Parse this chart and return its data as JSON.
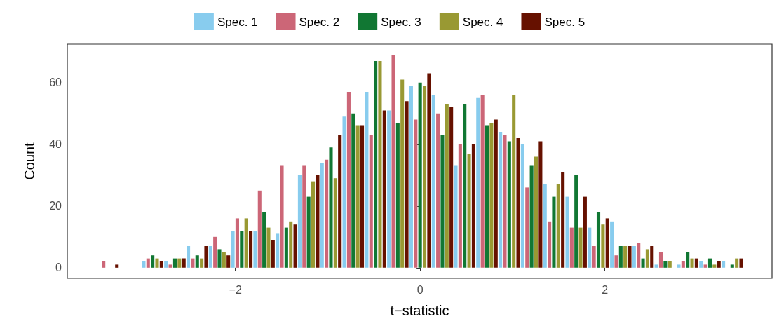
{
  "chart_data": {
    "type": "histogram",
    "xlabel": "t−statistic",
    "ylabel": "Count",
    "bins": [
      -3.5,
      -3.259,
      -3.017,
      -2.776,
      -2.534,
      -2.293,
      -2.052,
      -1.81,
      -1.569,
      -1.328,
      -1.086,
      -0.845,
      -0.603,
      -0.362,
      -0.121,
      0.121,
      0.362,
      0.603,
      0.845,
      1.086,
      1.328,
      1.569,
      1.81,
      2.052,
      2.293,
      2.534,
      2.776,
      3.017,
      3.259,
      3.5
    ],
    "series": [
      {
        "name": "Spec. 1",
        "color": "#88ccee",
        "values": [
          0,
          0,
          2,
          2,
          7,
          7,
          12,
          12,
          11,
          30,
          34,
          49,
          57,
          51,
          59,
          56,
          33,
          55,
          44,
          40,
          27,
          23,
          13,
          15,
          7,
          1,
          1,
          2,
          2
        ]
      },
      {
        "name": "Spec. 2",
        "color": "#cc6677",
        "values": [
          2,
          0,
          3,
          1,
          3,
          10,
          16,
          25,
          33,
          33,
          35,
          57,
          43,
          69,
          48,
          50,
          40,
          56,
          43,
          26,
          15,
          13,
          7,
          4,
          8,
          5,
          2,
          1,
          0
        ]
      },
      {
        "name": "Spec. 3",
        "color": "#117733",
        "values": [
          0,
          0,
          4,
          3,
          4,
          6,
          12,
          18,
          13,
          23,
          39,
          50,
          67,
          47,
          60,
          43,
          53,
          46,
          41,
          33,
          23,
          30,
          18,
          7,
          3,
          2,
          5,
          3,
          1
        ]
      },
      {
        "name": "Spec. 4",
        "color": "#999933",
        "values": [
          0,
          0,
          3,
          3,
          3,
          5,
          16,
          13,
          15,
          28,
          29,
          46,
          67,
          61,
          59,
          53,
          37,
          47,
          56,
          36,
          27,
          13,
          14,
          7,
          6,
          2,
          3,
          1,
          3
        ]
      },
      {
        "name": "Spec. 5",
        "color": "#661100",
        "values": [
          1,
          0,
          2,
          3,
          7,
          4,
          12,
          9,
          14,
          30,
          43,
          46,
          51,
          54,
          63,
          52,
          40,
          48,
          42,
          41,
          31,
          23,
          16,
          7,
          7,
          0,
          3,
          2,
          3
        ]
      }
    ],
    "xlim": [
      -3.82,
      3.81
    ],
    "xticks": [
      {
        "value": -2,
        "label": "−2"
      },
      0,
      2
    ],
    "ylim": [
      -3.45,
      72.45
    ],
    "yticks": [
      0,
      20,
      40,
      60
    ],
    "legend": "top"
  }
}
